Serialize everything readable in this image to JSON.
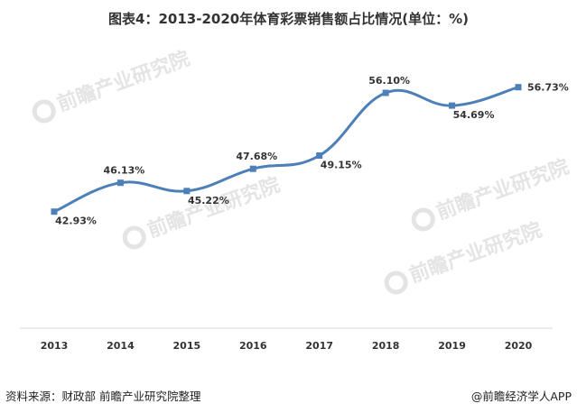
{
  "chart_data": {
    "type": "line",
    "title": "图表4：2013-2020年体育彩票销售额占比情况(单位：%)",
    "xlabel": "",
    "ylabel": "",
    "categories": [
      "2013",
      "2014",
      "2015",
      "2016",
      "2017",
      "2018",
      "2019",
      "2020"
    ],
    "series": [
      {
        "name": "体育彩票销售额占比",
        "values": [
          42.93,
          46.13,
          45.22,
          47.68,
          49.15,
          56.1,
          54.69,
          56.73
        ],
        "labels": [
          "42.93%",
          "46.13%",
          "45.22%",
          "47.68%",
          "49.15%",
          "56.10%",
          "54.69%",
          "56.73%"
        ]
      }
    ],
    "ylim": [
      30,
      60
    ],
    "grid": false,
    "line_color": "#4d7fb8",
    "marker": "square"
  },
  "footer": {
    "source": "资料来源：财政部 前瞻产业研究院整理",
    "brand": "@前瞻经济学人APP"
  },
  "watermark": {
    "text": "前瞻产业研究院"
  }
}
